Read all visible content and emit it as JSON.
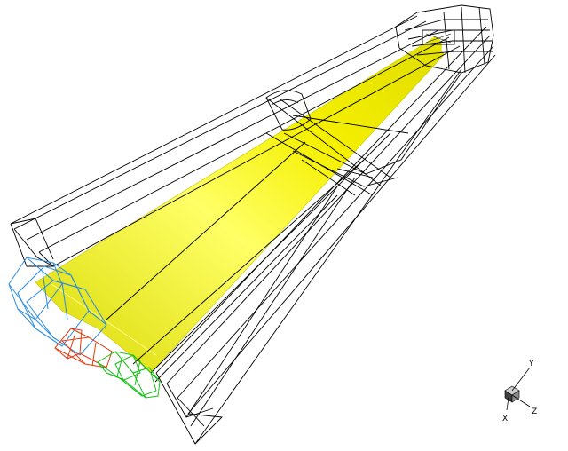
{
  "scene": {
    "background": "#ffffff",
    "colors": {
      "wireframe": "#000000",
      "cone_fill": "#f5f000",
      "cone_highlight": "#ffff66",
      "cone_shadow": "#d8d800",
      "mesh_blue": "#2a8be0",
      "mesh_red": "#e63b10",
      "mesh_green": "#18c018"
    },
    "components": [
      "wireframe-hull",
      "yellow-cone-surface",
      "blue-mesh",
      "red-mesh",
      "green-mesh"
    ]
  },
  "axis_triad": {
    "labels": {
      "x": "X",
      "y": "Y",
      "z": "Z"
    },
    "icon": "orientation-cube-icon"
  }
}
